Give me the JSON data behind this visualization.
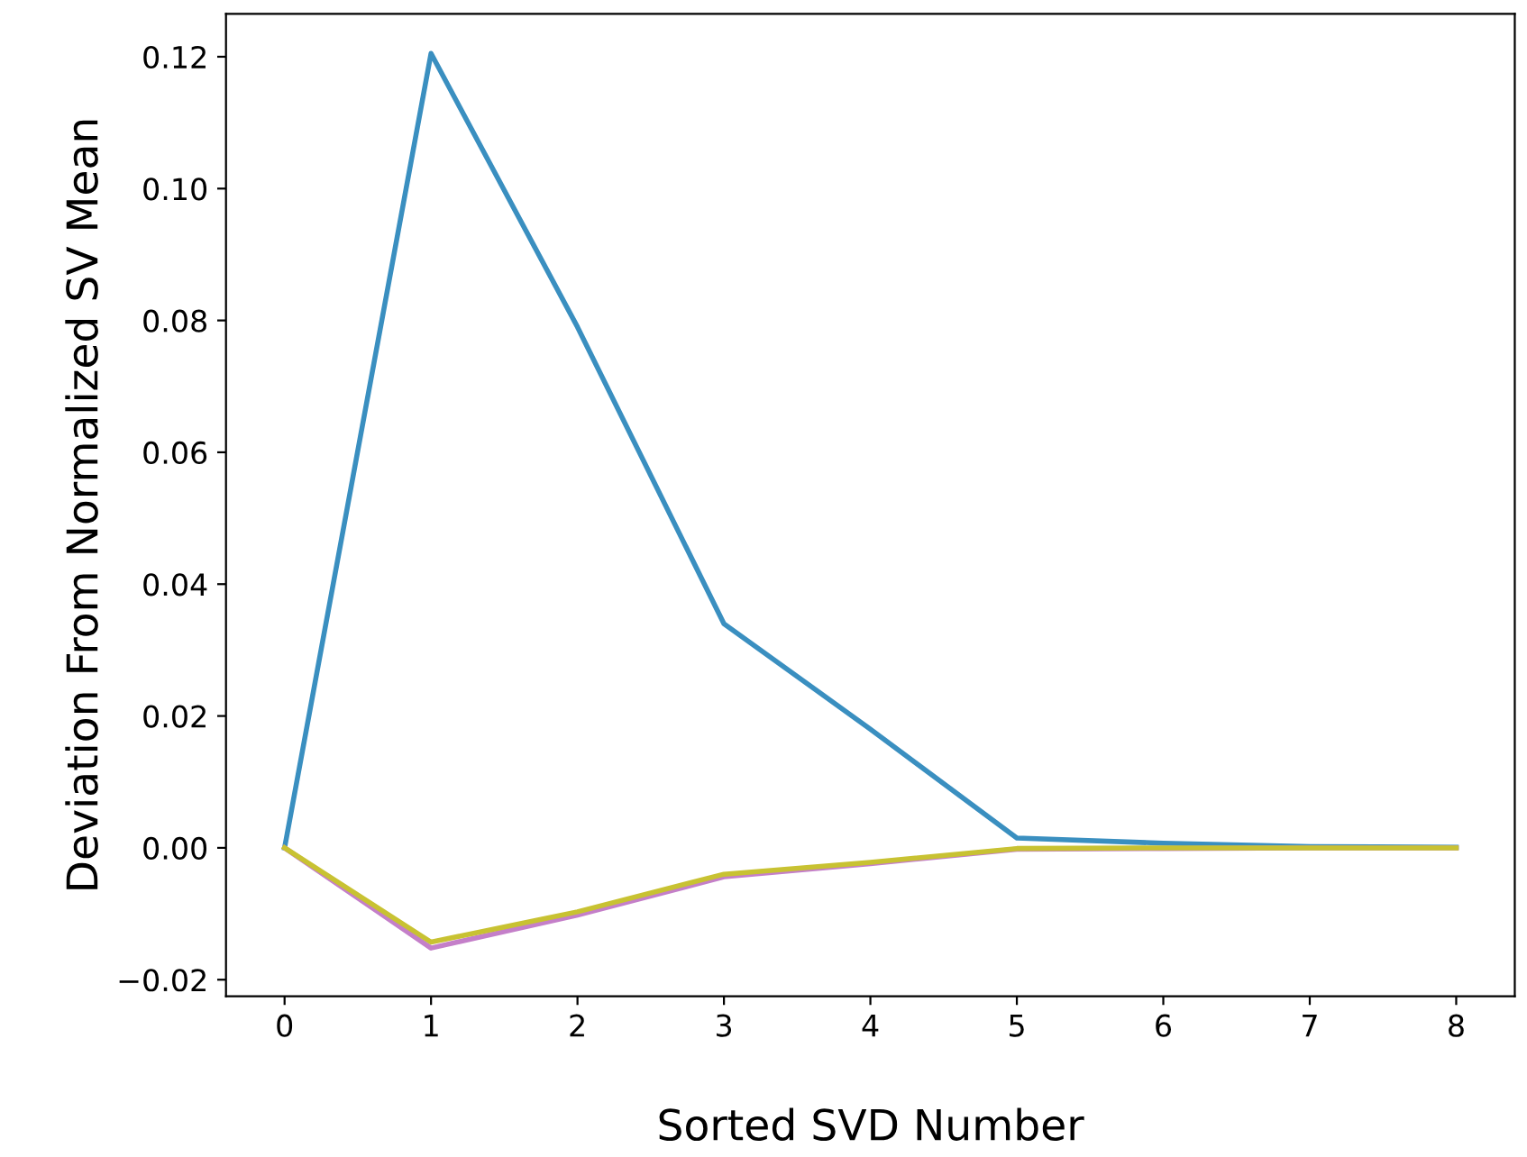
{
  "chart_data": {
    "type": "line",
    "xlabel": "Sorted SVD Number",
    "ylabel": "Deviation From Normalized SV Mean",
    "x": [
      0,
      1,
      2,
      3,
      4,
      5,
      6,
      7,
      8
    ],
    "series": [
      {
        "color": "#3a8fc0",
        "values": [
          0,
          0.1205,
          0.079,
          0.034,
          0.018,
          0.0015,
          0.0007,
          0.0002,
          0.0001
        ]
      },
      {
        "color": "#c47fc9",
        "values": [
          0,
          -0.0152,
          -0.0102,
          -0.0044,
          -0.0024,
          -0.0002,
          -0.0001,
          0,
          0
        ]
      },
      {
        "color": "#c8c232",
        "values": [
          0,
          -0.0143,
          -0.0097,
          -0.004,
          -0.0022,
          -0.0001,
          0,
          0,
          0
        ]
      }
    ],
    "xlim": [
      -0.4,
      8.4
    ],
    "ylim": [
      -0.0225,
      0.1265
    ],
    "xticks": [
      0,
      1,
      2,
      3,
      4,
      5,
      6,
      7,
      8
    ],
    "yticks": [
      {
        "value": -0.02,
        "label": "−0.02"
      },
      {
        "value": 0,
        "label": "0.00"
      },
      {
        "value": 0.02,
        "label": "0.02"
      },
      {
        "value": 0.04,
        "label": "0.04"
      },
      {
        "value": 0.06,
        "label": "0.06"
      },
      {
        "value": 0.08,
        "label": "0.08"
      },
      {
        "value": 0.1,
        "label": "0.10"
      },
      {
        "value": 0.12,
        "label": "0.12"
      }
    ],
    "grid": false,
    "marker": "none",
    "line_style": "solid"
  }
}
